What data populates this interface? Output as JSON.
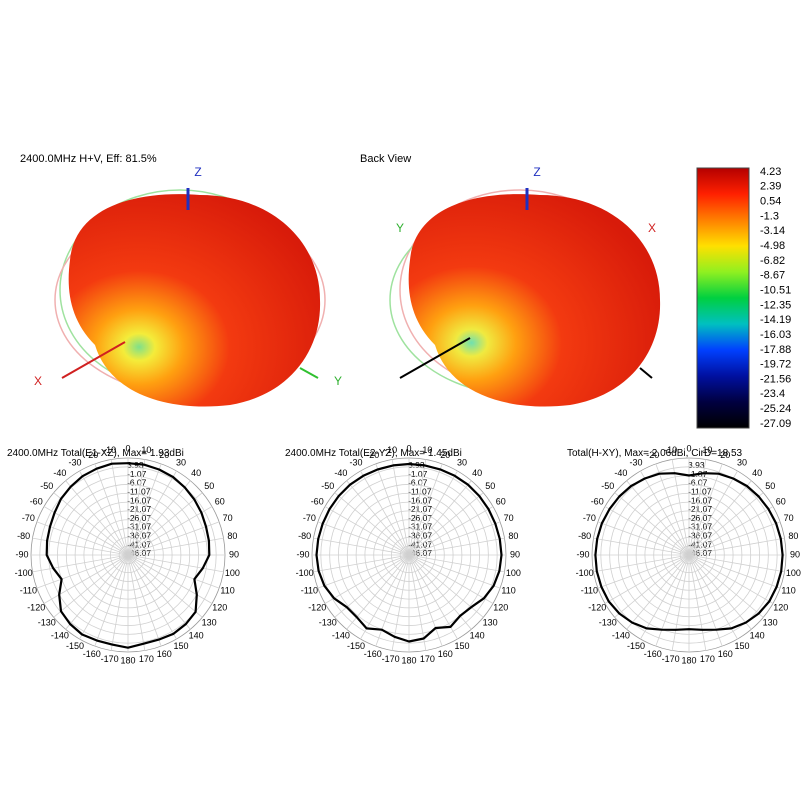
{
  "panels": [
    {
      "title": "2400.0MHz H+V, Eff: 81.5%",
      "axes": [
        "Z",
        "X",
        "Y"
      ]
    },
    {
      "title": "Back View",
      "axes": [
        "Z",
        "Y",
        "X"
      ]
    }
  ],
  "colorbar": {
    "ticks": [
      4.23,
      2.39,
      0.54,
      -1.3,
      -3.14,
      -4.98,
      -6.82,
      -8.67,
      -10.51,
      -12.35,
      -14.19,
      -16.03,
      -17.88,
      -19.72,
      -21.56,
      -23.4,
      -25.24,
      -27.09
    ]
  },
  "chart_data": [
    {
      "type": "polar",
      "title": "2400.0MHz Total(E1-XZ), Max= 1.93dBi",
      "x": [
        -170,
        -160,
        -150,
        -140,
        -130,
        -120,
        -110,
        -100,
        -90,
        -80,
        -70,
        -60,
        -50,
        -40,
        -30,
        -20,
        -10,
        0,
        10,
        20,
        30,
        40,
        50,
        60,
        70,
        80,
        90,
        100,
        110,
        120,
        130,
        140,
        150,
        160,
        170,
        180
      ],
      "values": [
        0.5,
        0.5,
        1,
        0,
        -1.5,
        -6,
        -11,
        -8,
        -5,
        -4.5,
        -4,
        -3,
        -1.5,
        -0.5,
        0.5,
        1,
        1.5,
        1,
        1,
        0.5,
        0,
        -1,
        -2,
        -3,
        -4,
        -4.5,
        -5,
        -8,
        -11,
        -6,
        -1,
        0,
        0.5,
        0,
        0,
        1.5
      ],
      "color": "#000000",
      "rlim": [
        -51.07,
        3.93
      ],
      "rticks": [
        3.93,
        -1.07,
        -6.07,
        -11.07,
        -16.07,
        -21.07,
        -26.07,
        -31.07,
        -36.07,
        -41.07,
        -46.07
      ],
      "angle_ticks": [
        0,
        10,
        20,
        30,
        40,
        50,
        60,
        70,
        80,
        90,
        100,
        110,
        120,
        130,
        140,
        150,
        160,
        170,
        180,
        -170,
        -160,
        -150,
        -140,
        -130,
        -120,
        -110,
        -100,
        -90,
        -80,
        -70,
        -60,
        -50,
        -40,
        -30,
        -20,
        -10
      ]
    },
    {
      "type": "polar",
      "title": "2400.0MHz Total(E2-YZ), Max= 1.45dBi",
      "x": [
        -170,
        -160,
        -150,
        -140,
        -130,
        -120,
        -110,
        -100,
        -90,
        -80,
        -70,
        -60,
        -50,
        -40,
        -30,
        -20,
        -10,
        0,
        10,
        20,
        30,
        40,
        50,
        60,
        70,
        80,
        90,
        100,
        110,
        120,
        130,
        140,
        150,
        160,
        170,
        180
      ],
      "values": [
        -4,
        -6,
        -3,
        -5,
        -5,
        -2,
        0,
        1,
        1.4,
        1.2,
        1,
        1,
        1,
        1,
        0.8,
        0.6,
        0.5,
        0.5,
        0.5,
        0.6,
        0.8,
        1,
        1,
        1,
        1,
        1.2,
        1.4,
        1,
        0,
        -2,
        -5,
        -6,
        -4,
        -7,
        -3,
        -2
      ],
      "color": "#000000",
      "rlim": [
        -51.07,
        3.93
      ],
      "rticks": [
        3.93,
        -1.07,
        -6.07,
        -11.07,
        -16.07,
        -21.07,
        -26.07,
        -31.07,
        -36.07,
        -41.07,
        -46.07
      ],
      "angle_ticks": [
        0,
        10,
        20,
        30,
        40,
        50,
        60,
        70,
        80,
        90,
        100,
        110,
        120,
        130,
        140,
        150,
        160,
        170,
        180,
        -170,
        -160,
        -150,
        -140,
        -130,
        -120,
        -110,
        -100,
        -90,
        -80,
        -70,
        -60,
        -50,
        -40,
        -30,
        -20,
        -10
      ]
    },
    {
      "type": "polar",
      "title": "Total(H-XY), Max= 2.06dBi, CirD=18.53",
      "x": [
        -170,
        -160,
        -150,
        -140,
        -130,
        -120,
        -110,
        -100,
        -90,
        -80,
        -70,
        -60,
        -50,
        -40,
        -30,
        -20,
        -10,
        0,
        10,
        20,
        30,
        40,
        50,
        60,
        70,
        80,
        90,
        100,
        110,
        120,
        130,
        140,
        150,
        160,
        170,
        180
      ],
      "values": [
        -8,
        -6,
        -3,
        -1,
        0.5,
        1.5,
        1.8,
        2,
        2,
        1.8,
        1.5,
        1,
        0.5,
        0,
        -1,
        -2,
        -4,
        -6,
        -4,
        -2,
        -1,
        0,
        0.5,
        1,
        1.5,
        1.8,
        2,
        2,
        1.8,
        1.5,
        0.5,
        -1,
        -3,
        -6,
        -8,
        -9
      ],
      "color": "#000000",
      "rlim": [
        -51.07,
        3.93
      ],
      "rticks": [
        3.93,
        -1.07,
        -6.07,
        -11.07,
        -16.07,
        -21.07,
        -26.07,
        -31.07,
        -36.07,
        -41.07,
        -46.07
      ],
      "angle_ticks": [
        0,
        10,
        20,
        30,
        40,
        50,
        60,
        70,
        80,
        90,
        100,
        110,
        120,
        130,
        140,
        150,
        160,
        170,
        180,
        -170,
        -160,
        -150,
        -140,
        -130,
        -120,
        -110,
        -100,
        -90,
        -80,
        -70,
        -60,
        -50,
        -40,
        -30,
        -20,
        -10
      ]
    }
  ]
}
